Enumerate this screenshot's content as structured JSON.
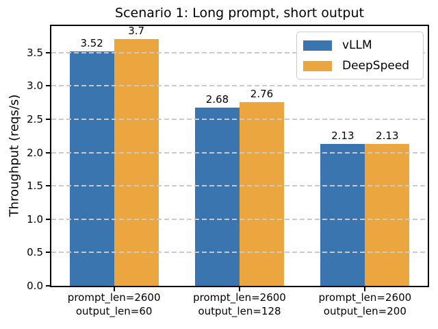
{
  "chart_data": {
    "type": "bar",
    "title": "Scenario 1: Long prompt, short output",
    "ylabel": "Throughput (reqs/s)",
    "xlabel": "",
    "categories": [
      [
        "prompt_len=2600",
        "output_len=60"
      ],
      [
        "prompt_len=2600",
        "output_len=128"
      ],
      [
        "prompt_len=2600",
        "output_len=200"
      ]
    ],
    "series": [
      {
        "name": "vLLM",
        "color": "#3b75af",
        "values": [
          3.52,
          2.68,
          2.13
        ],
        "labels": [
          "3.52",
          "2.68",
          "2.13"
        ]
      },
      {
        "name": "DeepSpeed",
        "color": "#eca63f",
        "values": [
          3.7,
          2.76,
          2.13
        ],
        "labels": [
          "3.7",
          "2.76",
          "2.13"
        ]
      }
    ],
    "ylim": [
      0,
      3.9
    ],
    "yticks": [
      "0.0",
      "0.5",
      "1.0",
      "1.5",
      "2.0",
      "2.5",
      "3.0",
      "3.5"
    ],
    "grid": {
      "axis": "y",
      "style": "dashed",
      "color": "#c9c9c9"
    },
    "legend": {
      "position": "upper right"
    }
  }
}
